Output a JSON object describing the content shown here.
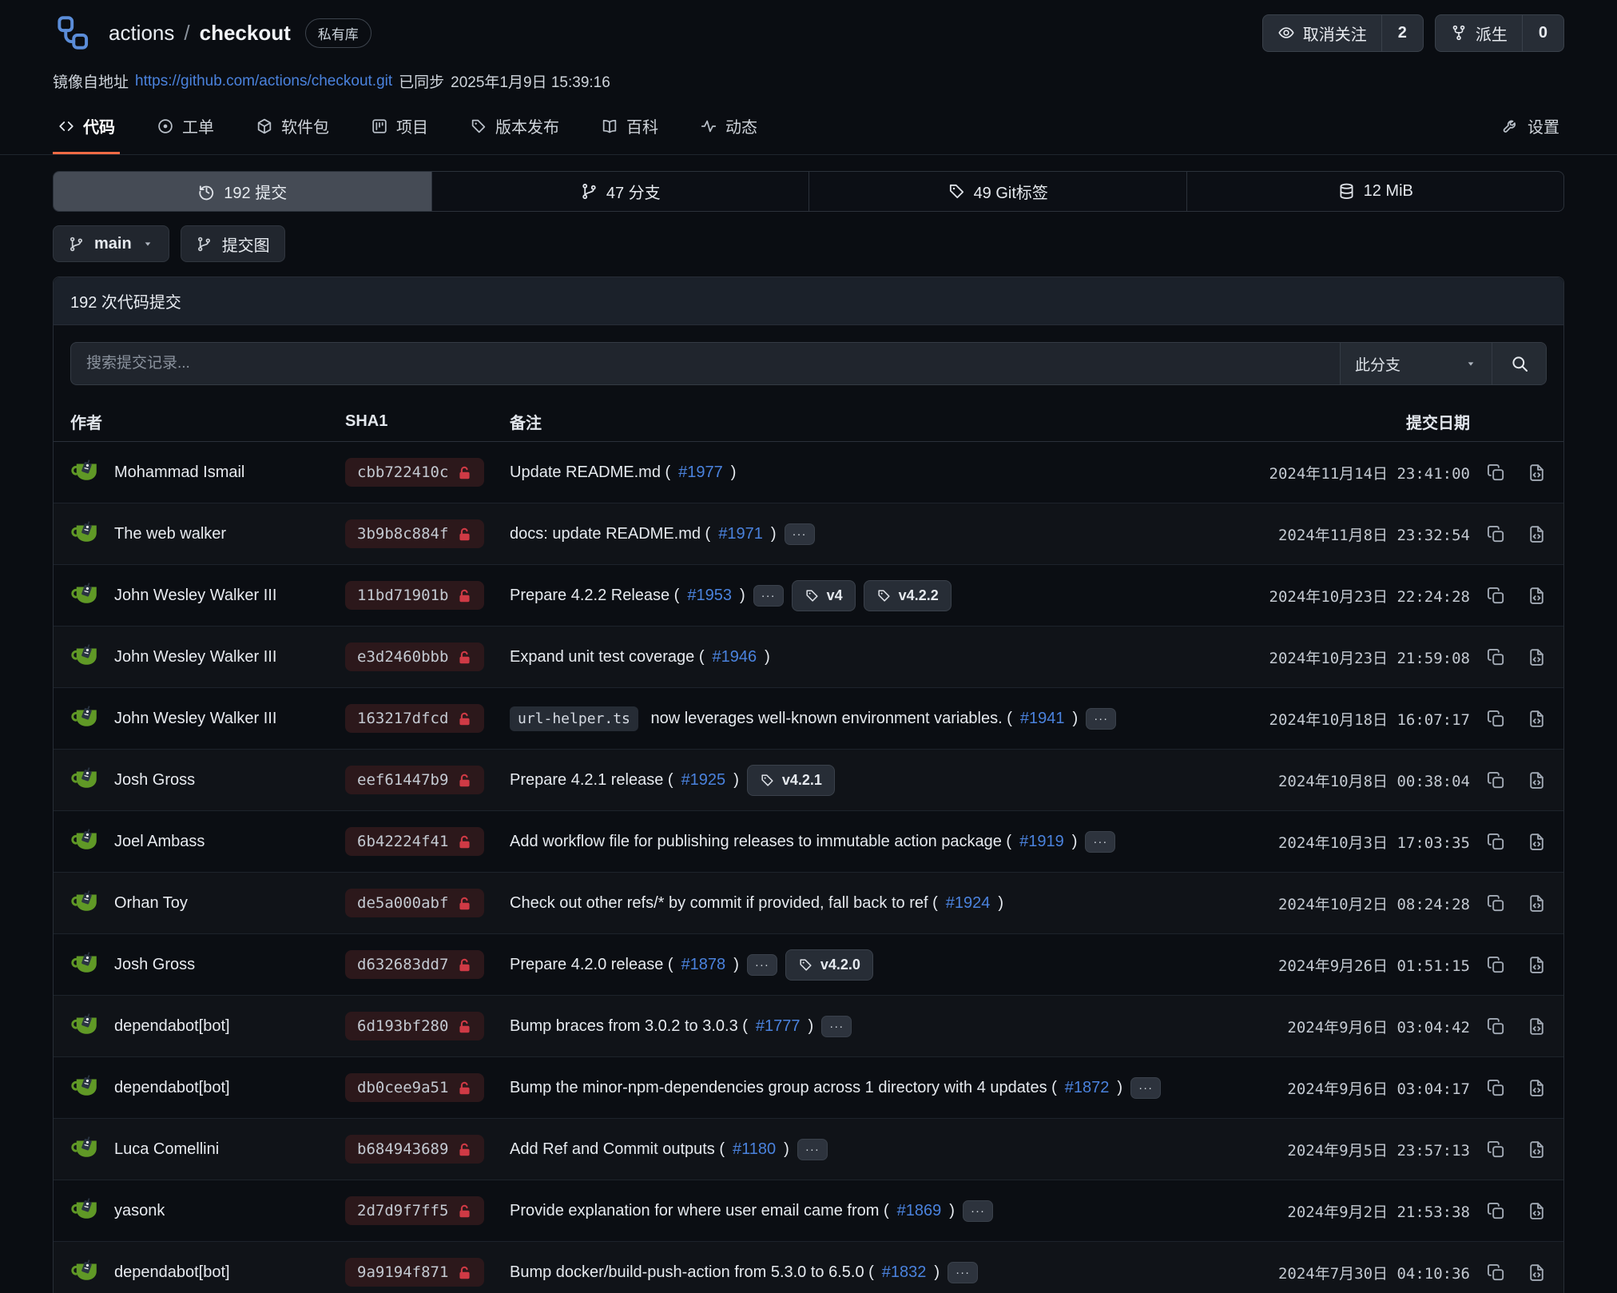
{
  "header": {
    "owner": "actions",
    "slash": "/",
    "repo": "checkout",
    "badge": "私有库",
    "watch_label": "取消关注",
    "watch_count": "2",
    "fork_label": "派生",
    "fork_count": "0",
    "mirror_prefix": "镜像自地址",
    "mirror_url": "https://github.com/actions/checkout.git",
    "synced_label": "已同步",
    "synced_time": "2025年1月9日 15:39:16"
  },
  "tabs": [
    {
      "label": "代码",
      "active": true
    },
    {
      "label": "工单"
    },
    {
      "label": "软件包"
    },
    {
      "label": "项目"
    },
    {
      "label": "版本发布"
    },
    {
      "label": "百科"
    },
    {
      "label": "动态"
    }
  ],
  "settings_label": "设置",
  "stats": [
    {
      "label": "192 提交",
      "active": true
    },
    {
      "label": "47 分支"
    },
    {
      "label": "49 Git标签"
    },
    {
      "label": "12 MiB"
    }
  ],
  "toolbar": {
    "branch": "main",
    "graph": "提交图"
  },
  "panel": {
    "title": "192 次代码提交"
  },
  "search": {
    "placeholder": "搜索提交记录...",
    "scope": "此分支"
  },
  "table": {
    "col_author": "作者",
    "col_sha": "SHA1",
    "col_message": "备注",
    "col_date": "提交日期"
  },
  "ui": {
    "ellipsis": "···"
  },
  "colors": {
    "accent": "#ef6a45",
    "link": "#4a82dd",
    "lock_red": "#cf3a45",
    "avatar_green": "#609926"
  },
  "commits": [
    {
      "author": "Mohammad Ismail",
      "sha": "cbb722410c",
      "code": null,
      "text": "Update README.md (",
      "link": "#1977",
      "suffix": ")",
      "ellipsis": false,
      "tags": [],
      "date": "2024年11月14日 23:41:00"
    },
    {
      "author": "The web walker",
      "sha": "3b9b8c884f",
      "code": null,
      "text": "docs: update README.md (",
      "link": "#1971",
      "suffix": ")",
      "ellipsis": true,
      "tags": [],
      "date": "2024年11月8日 23:32:54"
    },
    {
      "author": "John Wesley Walker III",
      "sha": "11bd71901b",
      "code": null,
      "text": "Prepare 4.2.2 Release (",
      "link": "#1953",
      "suffix": ")",
      "ellipsis": true,
      "tags": [
        "v4",
        "v4.2.2"
      ],
      "date": "2024年10月23日 22:24:28"
    },
    {
      "author": "John Wesley Walker III",
      "sha": "e3d2460bbb",
      "code": null,
      "text": "Expand unit test coverage (",
      "link": "#1946",
      "suffix": ")",
      "ellipsis": false,
      "tags": [],
      "date": "2024年10月23日 21:59:08"
    },
    {
      "author": "John Wesley Walker III",
      "sha": "163217dfcd",
      "code": "url-helper.ts",
      "text": " now leverages well-known environment variables. (",
      "link": "#1941",
      "suffix": ")",
      "ellipsis": true,
      "tags": [],
      "date": "2024年10月18日 16:07:17"
    },
    {
      "author": "Josh Gross",
      "sha": "eef61447b9",
      "code": null,
      "text": "Prepare 4.2.1 release (",
      "link": "#1925",
      "suffix": ")",
      "ellipsis": false,
      "tags": [
        "v4.2.1"
      ],
      "date": "2024年10月8日 00:38:04"
    },
    {
      "author": "Joel Ambass",
      "sha": "6b42224f41",
      "code": null,
      "text": "Add workflow file for publishing releases to immutable action package (",
      "link": "#1919",
      "suffix": ")",
      "ellipsis": true,
      "tags": [],
      "date": "2024年10月3日 17:03:35"
    },
    {
      "author": "Orhan Toy",
      "sha": "de5a000abf",
      "code": null,
      "text": "Check out other refs/* by commit if provided, fall back to ref (",
      "link": "#1924",
      "suffix": ")",
      "ellipsis": false,
      "tags": [],
      "date": "2024年10月2日 08:24:28"
    },
    {
      "author": "Josh Gross",
      "sha": "d632683dd7",
      "code": null,
      "text": "Prepare 4.2.0 release (",
      "link": "#1878",
      "suffix": ")",
      "ellipsis": true,
      "tags": [
        "v4.2.0"
      ],
      "date": "2024年9月26日 01:51:15"
    },
    {
      "author": "dependabot[bot]",
      "sha": "6d193bf280",
      "code": null,
      "text": "Bump braces from 3.0.2 to 3.0.3 (",
      "link": "#1777",
      "suffix": ")",
      "ellipsis": true,
      "tags": [],
      "date": "2024年9月6日 03:04:42"
    },
    {
      "author": "dependabot[bot]",
      "sha": "db0cee9a51",
      "code": null,
      "text": "Bump the minor-npm-dependencies group across 1 directory with 4 updates (",
      "link": "#1872",
      "suffix": ")",
      "ellipsis": true,
      "tags": [],
      "date": "2024年9月6日 03:04:17"
    },
    {
      "author": "Luca Comellini",
      "sha": "b684943689",
      "code": null,
      "text": "Add Ref and Commit outputs (",
      "link": "#1180",
      "suffix": ")",
      "ellipsis": true,
      "tags": [],
      "date": "2024年9月5日 23:57:13"
    },
    {
      "author": "yasonk",
      "sha": "2d7d9f7ff5",
      "code": null,
      "text": "Provide explanation for where user email came from (",
      "link": "#1869",
      "suffix": ")",
      "ellipsis": true,
      "tags": [],
      "date": "2024年9月2日 21:53:38"
    },
    {
      "author": "dependabot[bot]",
      "sha": "9a9194f871",
      "code": null,
      "text": "Bump docker/build-push-action from 5.3.0 to 6.5.0 (",
      "link": "#1832",
      "suffix": ")",
      "ellipsis": true,
      "tags": [],
      "date": "2024年7月30日 04:10:36"
    }
  ]
}
